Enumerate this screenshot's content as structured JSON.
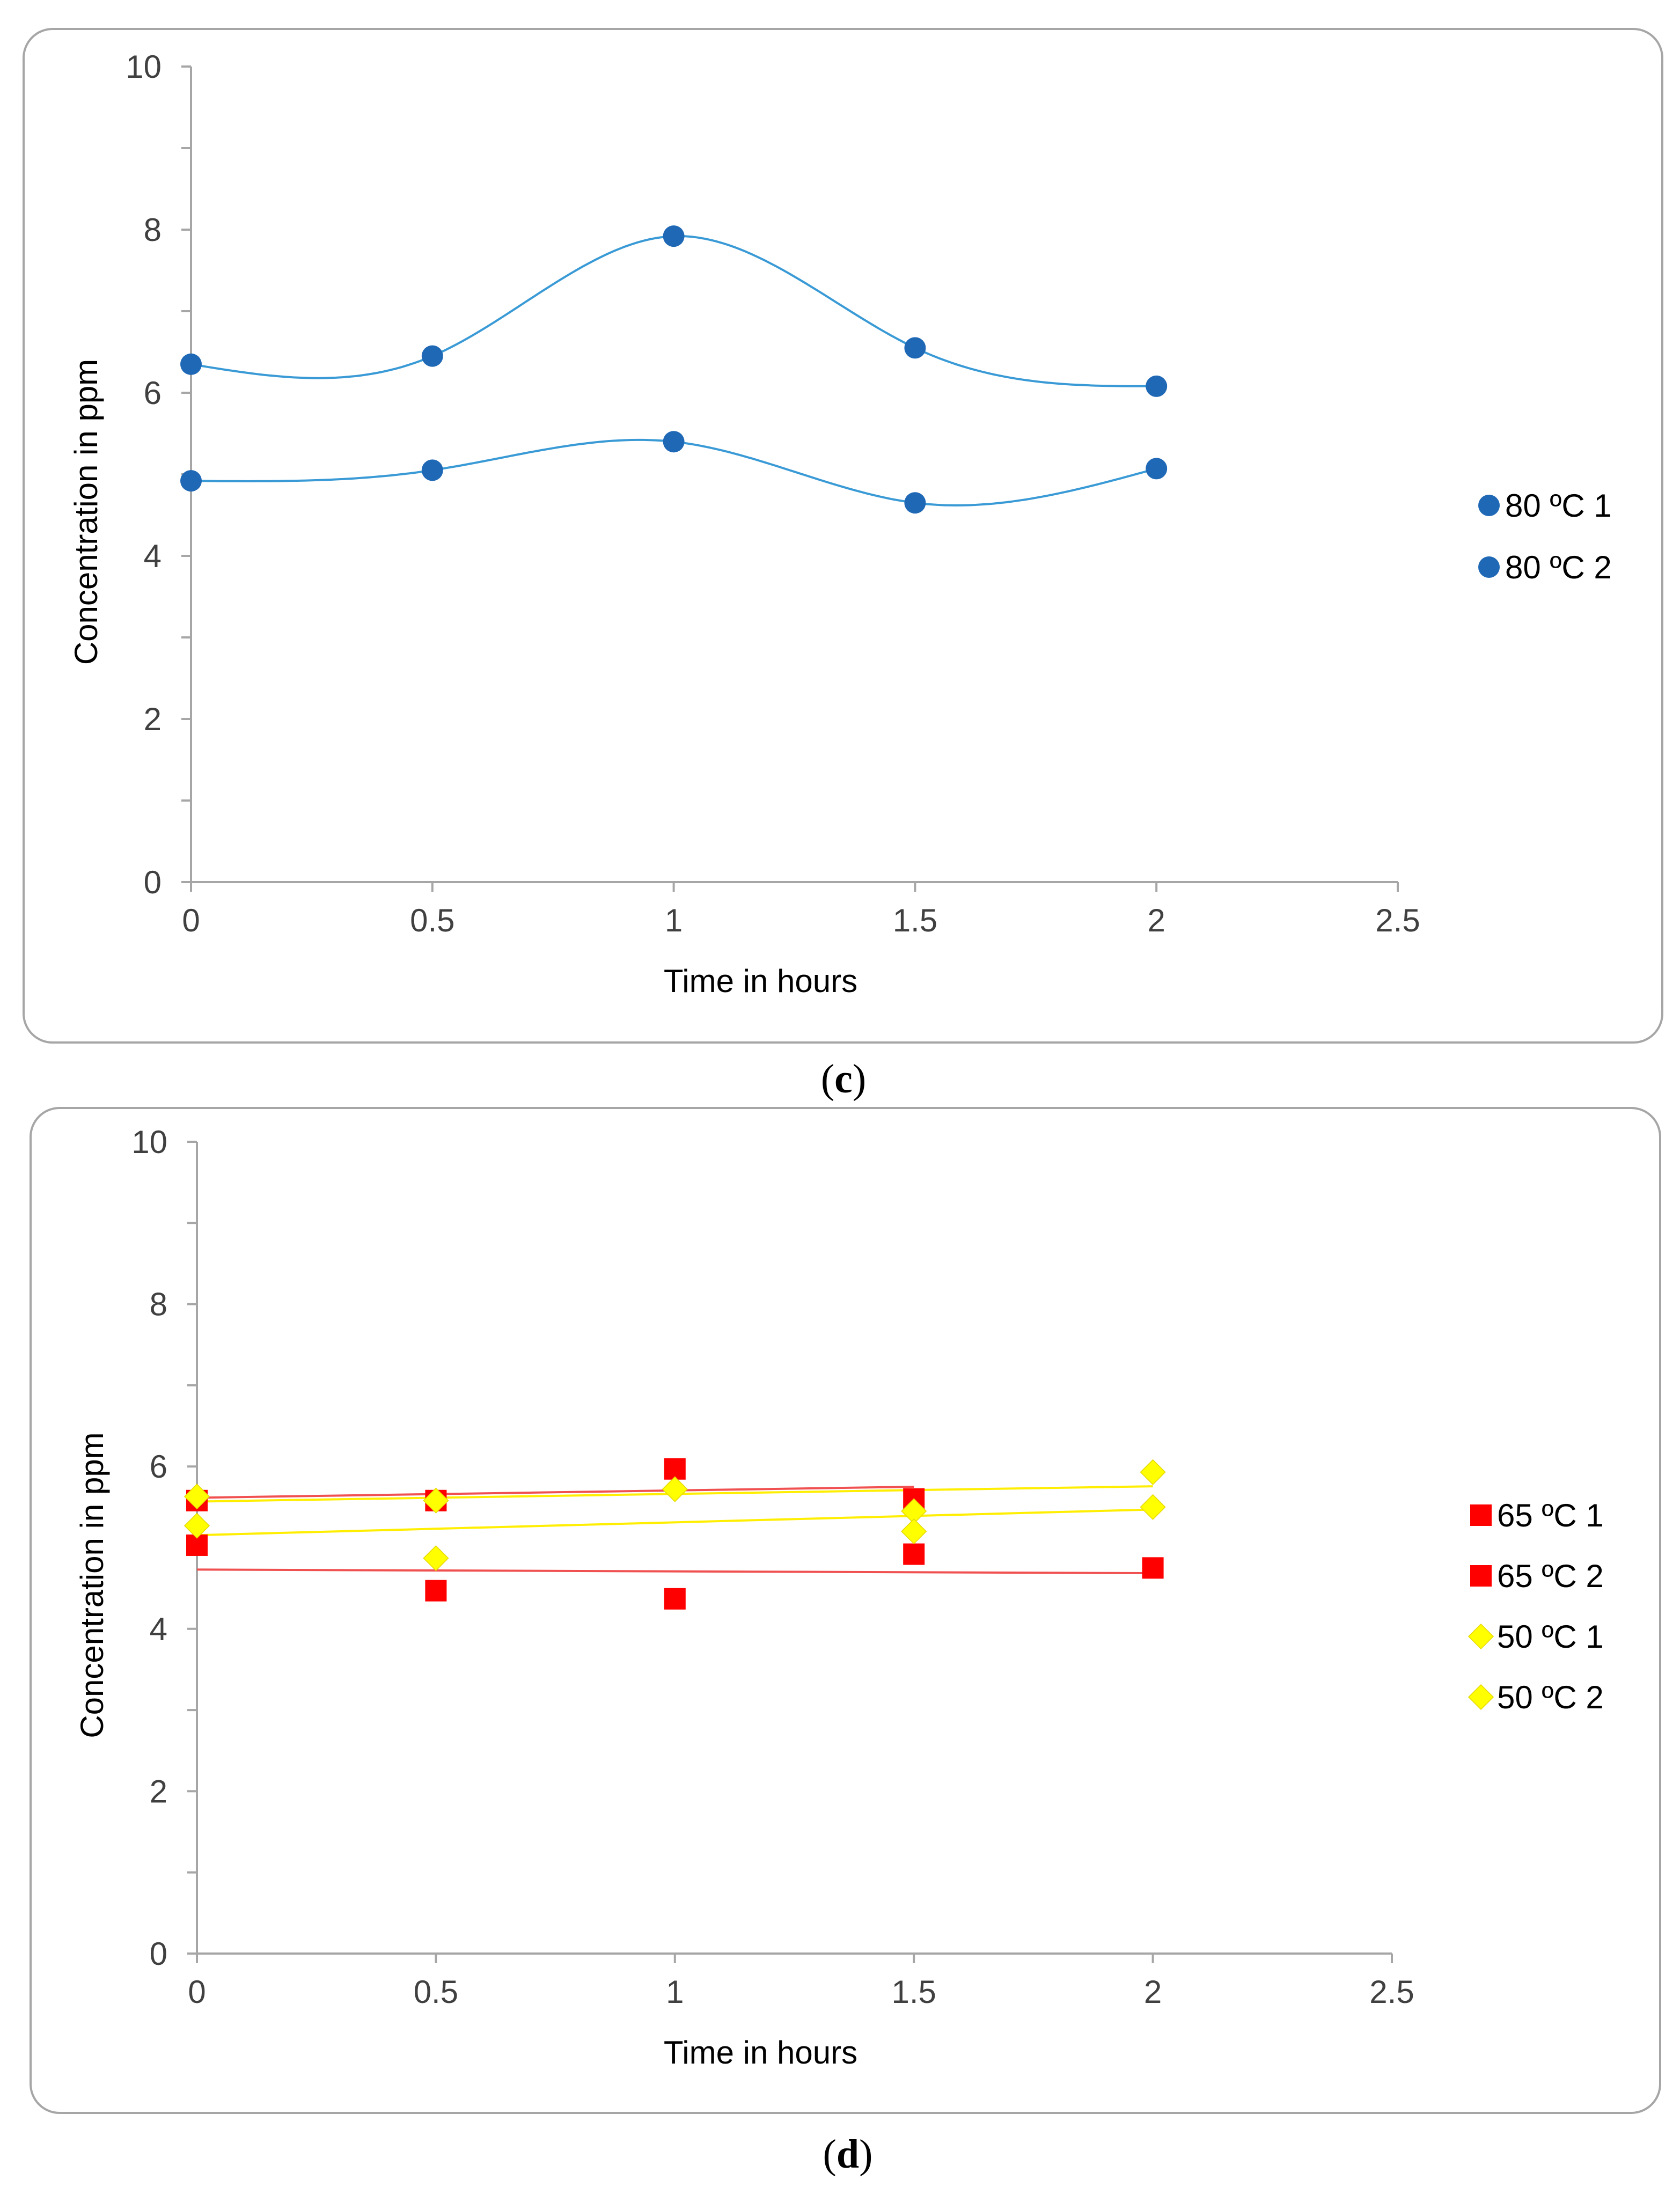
{
  "panels": [
    {
      "caption_open": "(",
      "caption_label": "c",
      "caption_close": ")"
    },
    {
      "caption_open": "(",
      "caption_label": "d",
      "caption_close": ")"
    }
  ],
  "chart_data": [
    {
      "type": "scatter",
      "xlabel": "Time in hours",
      "ylabel": "Concentration in ppm",
      "xlim": [
        0,
        2.5
      ],
      "ylim": [
        0,
        10
      ],
      "x_ticks": [
        "0",
        "0.5",
        "1",
        "1.5",
        "2",
        "2.5"
      ],
      "y_ticks": [
        "0",
        "2",
        "4",
        "6",
        "8",
        "10"
      ],
      "grid": false,
      "legend_position": "right",
      "trendline": "smooth",
      "series": [
        {
          "name": "80 ºC 1",
          "marker": "circle",
          "color": "#1f68b5",
          "line_color": "#3a9ad6",
          "x": [
            0,
            0.5,
            1,
            1.5,
            2
          ],
          "y": [
            6.35,
            6.45,
            7.92,
            6.55,
            6.08
          ]
        },
        {
          "name": "80 ºC 2",
          "marker": "circle",
          "color": "#1f68b5",
          "line_color": "#3a9ad6",
          "x": [
            0,
            0.5,
            1,
            1.5,
            2
          ],
          "y": [
            4.92,
            5.05,
            5.4,
            4.65,
            5.07
          ]
        }
      ]
    },
    {
      "type": "scatter",
      "xlabel": "Time in hours",
      "ylabel": "Concentration in ppm",
      "xlim": [
        0,
        2.5
      ],
      "ylim": [
        0,
        10
      ],
      "x_ticks": [
        "0",
        "0.5",
        "1",
        "1.5",
        "2",
        "2.5"
      ],
      "y_ticks": [
        "0",
        "2",
        "4",
        "6",
        "8",
        "10"
      ],
      "grid": false,
      "legend_position": "right",
      "trendline": "linear",
      "series": [
        {
          "name": "65 ºC 1",
          "marker": "square",
          "color": "#ff0000",
          "line_color": "#f05050",
          "x": [
            0,
            0.5,
            1,
            1.5
          ],
          "y": [
            5.58,
            5.58,
            5.97,
            5.6
          ]
        },
        {
          "name": "65 ºC 2",
          "marker": "square",
          "color": "#ff0000",
          "line_color": "#f05050",
          "x": [
            0,
            0.5,
            1,
            1.5,
            2
          ],
          "y": [
            5.03,
            4.47,
            4.37,
            4.92,
            4.75
          ]
        },
        {
          "name": "50 ºC 1",
          "marker": "diamond",
          "color": "#ffff00",
          "line_color": "#ffee00",
          "x": [
            0,
            0.5,
            1,
            1.5,
            2
          ],
          "y": [
            5.63,
            5.58,
            5.72,
            5.45,
            5.93
          ]
        },
        {
          "name": "50 ºC 2",
          "marker": "diamond",
          "color": "#ffff00",
          "line_color": "#ffee00",
          "x": [
            0,
            0.5,
            1,
            1.5,
            2
          ],
          "y": [
            5.27,
            4.87,
            5.72,
            5.2,
            5.5
          ]
        }
      ]
    }
  ]
}
